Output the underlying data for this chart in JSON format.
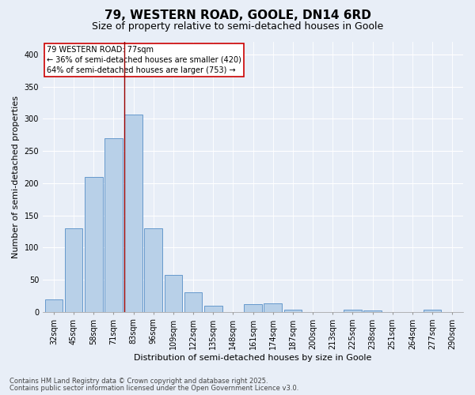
{
  "title": "79, WESTERN ROAD, GOOLE, DN14 6RD",
  "subtitle": "Size of property relative to semi-detached houses in Goole",
  "xlabel": "Distribution of semi-detached houses by size in Goole",
  "ylabel": "Number of semi-detached properties",
  "categories": [
    "32sqm",
    "45sqm",
    "58sqm",
    "71sqm",
    "83sqm",
    "96sqm",
    "109sqm",
    "122sqm",
    "135sqm",
    "148sqm",
    "161sqm",
    "174sqm",
    "187sqm",
    "200sqm",
    "213sqm",
    "225sqm",
    "238sqm",
    "251sqm",
    "264sqm",
    "277sqm",
    "290sqm"
  ],
  "values": [
    20,
    130,
    210,
    270,
    307,
    130,
    57,
    30,
    10,
    0,
    12,
    13,
    3,
    0,
    0,
    4,
    2,
    0,
    0,
    3,
    0
  ],
  "bar_color": "#b8d0e8",
  "bar_edge_color": "#6699cc",
  "bg_color": "#e8eef7",
  "grid_color": "#ffffff",
  "vline_color": "#990000",
  "annotation_text": "79 WESTERN ROAD: 77sqm\n← 36% of semi-detached houses are smaller (420)\n64% of semi-detached houses are larger (753) →",
  "annotation_box_color": "#ffffff",
  "annotation_box_edge": "#cc0000",
  "footnote1": "Contains HM Land Registry data © Crown copyright and database right 2025.",
  "footnote2": "Contains public sector information licensed under the Open Government Licence v3.0.",
  "ylim": [
    0,
    420
  ],
  "yticks": [
    0,
    50,
    100,
    150,
    200,
    250,
    300,
    350,
    400
  ],
  "title_fontsize": 11,
  "subtitle_fontsize": 9,
  "tick_fontsize": 7,
  "axis_label_fontsize": 8,
  "annotation_fontsize": 7,
  "footnote_fontsize": 6
}
